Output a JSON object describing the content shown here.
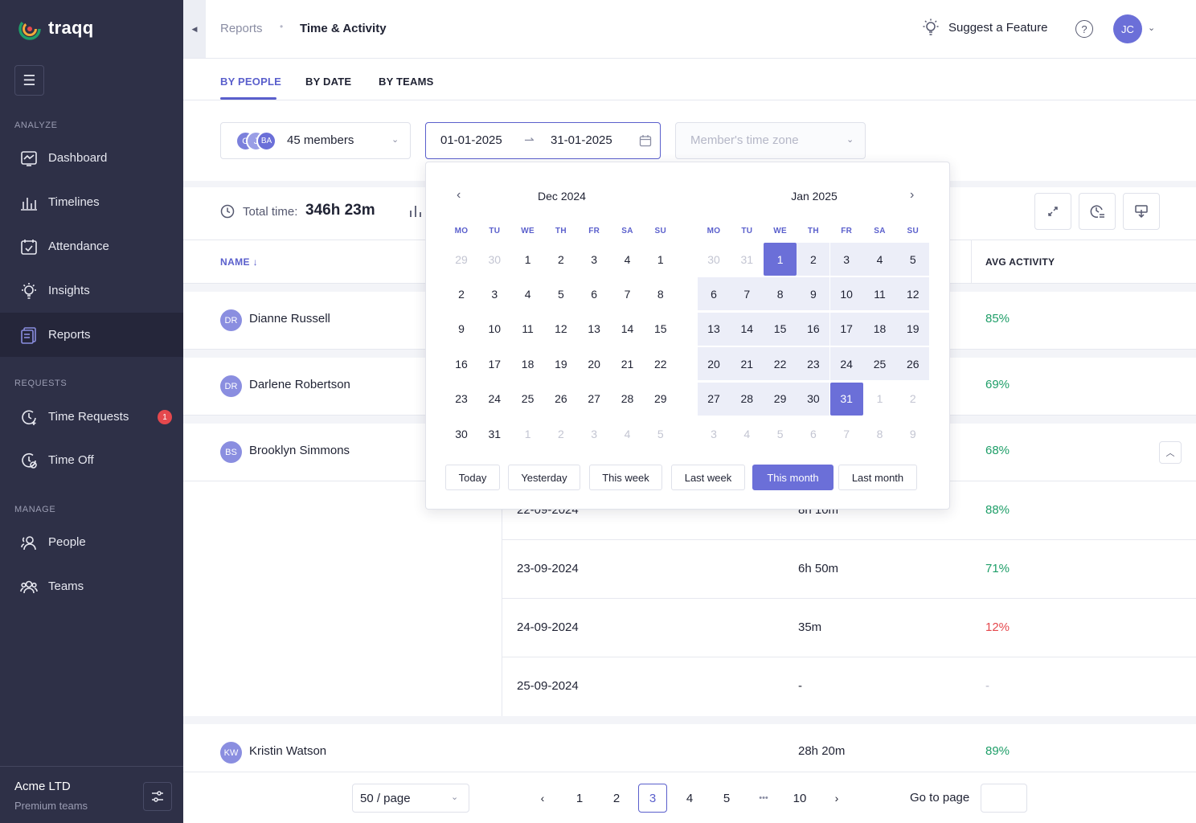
{
  "app": {
    "name": "traqq"
  },
  "sidebar": {
    "sections": {
      "analyze": "ANALYZE",
      "requests": "REQUESTS",
      "manage": "MANAGE"
    },
    "items": [
      {
        "label": "Dashboard",
        "icon": "dashboard-icon"
      },
      {
        "label": "Timelines",
        "icon": "timelines-icon"
      },
      {
        "label": "Attendance",
        "icon": "attendance-icon"
      },
      {
        "label": "Insights",
        "icon": "insights-icon"
      },
      {
        "label": "Reports",
        "icon": "reports-icon",
        "active": true
      },
      {
        "label": "Time Requests",
        "icon": "time-requests-icon",
        "badge": "1"
      },
      {
        "label": "Time Off",
        "icon": "time-off-icon"
      },
      {
        "label": "People",
        "icon": "people-icon"
      },
      {
        "label": "Teams",
        "icon": "teams-icon"
      }
    ],
    "org": {
      "name": "Acme LTD",
      "plan": "Premium teams"
    }
  },
  "header": {
    "breadcrumb": [
      "Reports",
      "Time & Activity"
    ],
    "suggest": "Suggest a Feature",
    "help": "?",
    "user_initials": "JC"
  },
  "tabs": [
    "BY PEOPLE",
    "BY DATE",
    "BY TEAMS"
  ],
  "filters": {
    "member_avatars": [
      "G",
      "J",
      "BA"
    ],
    "members_label": "45 members",
    "date_start": "01-01-2025",
    "date_end": "31-01-2025",
    "timezone_placeholder": "Member's time zone"
  },
  "summary": {
    "total_label": "Total time:",
    "total_value": "346h 23m"
  },
  "table": {
    "col_name": "NAME",
    "col_avg": "AVG ACTIVITY",
    "rows": [
      {
        "initials": "DR",
        "name": "Dianne Russell",
        "time": "",
        "activity": "85%"
      },
      {
        "initials": "DR",
        "name": "Darlene Robertson",
        "time": "",
        "activity": "69%"
      },
      {
        "initials": "BS",
        "name": "Brooklyn Simmons",
        "time": "",
        "activity": "68%"
      },
      {
        "initials": "KW",
        "name": "Kristin Watson",
        "time": "28h 20m",
        "activity": "89%"
      }
    ],
    "sub_rows": [
      {
        "date": "22-09-2024",
        "time": "8h 10m",
        "activity": "88%",
        "color": "green"
      },
      {
        "date": "23-09-2024",
        "time": "6h 50m",
        "activity": "71%",
        "color": "green"
      },
      {
        "date": "24-09-2024",
        "time": "35m",
        "activity": "12%",
        "color": "red"
      },
      {
        "date": "25-09-2024",
        "time": "-",
        "activity": "-",
        "color": "dim"
      }
    ]
  },
  "pagination": {
    "per_page": "50 / page",
    "pages": [
      "1",
      "2",
      "3",
      "4",
      "5",
      "•••",
      "10"
    ],
    "current": "3",
    "goto_label": "Go to page"
  },
  "picker": {
    "left_month": "Dec 2024",
    "right_month": "Jan 2025",
    "dow": [
      "MO",
      "TU",
      "WE",
      "TH",
      "FR",
      "SA",
      "SU"
    ],
    "left_days": [
      [
        "29",
        "30",
        "1",
        "2",
        "3",
        "4",
        "1"
      ],
      [
        "2",
        "3",
        "4",
        "5",
        "6",
        "7",
        "8"
      ],
      [
        "9",
        "10",
        "11",
        "12",
        "13",
        "14",
        "15"
      ],
      [
        "16",
        "17",
        "18",
        "19",
        "20",
        "21",
        "22"
      ],
      [
        "23",
        "24",
        "25",
        "26",
        "27",
        "28",
        "29"
      ],
      [
        "30",
        "31",
        "1",
        "2",
        "3",
        "4",
        "5"
      ]
    ],
    "right_days": [
      [
        "30",
        "31",
        "1",
        "2",
        "3",
        "4",
        "5"
      ],
      [
        "6",
        "7",
        "8",
        "9",
        "10",
        "11",
        "12"
      ],
      [
        "13",
        "14",
        "15",
        "16",
        "17",
        "18",
        "19"
      ],
      [
        "20",
        "21",
        "22",
        "23",
        "24",
        "25",
        "26"
      ],
      [
        "27",
        "28",
        "29",
        "30",
        "31",
        "1",
        "2"
      ],
      [
        "3",
        "4",
        "5",
        "6",
        "7",
        "8",
        "9"
      ]
    ],
    "presets": [
      "Today",
      "Yesterday",
      "This week",
      "Last week",
      "This month",
      "Last month"
    ],
    "active_preset": "This month"
  },
  "colors": {
    "accent": "#5a5fcc",
    "sidebar": "#2e3047",
    "positive": "#1e9e68",
    "negative": "#e5484d"
  }
}
